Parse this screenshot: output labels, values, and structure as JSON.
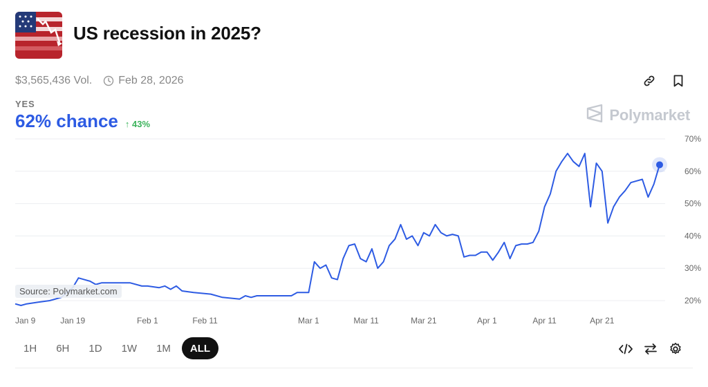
{
  "market": {
    "title": "US recession in 2025?",
    "volume": "$3,565,436 Vol.",
    "end_date": "Feb 28, 2026",
    "outcome_label": "YES",
    "chance": "62% chance",
    "change": "↑ 43%",
    "brand": "Polymarket",
    "source": "Source: Polymarket.com"
  },
  "colors": {
    "line": "#2d5be3",
    "positive": "#3cb35c",
    "brand": "#c5c9d0"
  },
  "icons": {
    "thumbnail": "us-flag-chart-thumbnail",
    "clock": "clock-icon",
    "link": "link-icon",
    "bookmark": "bookmark-icon",
    "brand": "polymarket-logo-icon",
    "embed": "code-icon",
    "swap": "swap-icon",
    "settings": "gear-icon"
  },
  "range_buttons": [
    {
      "label": "1H",
      "active": false
    },
    {
      "label": "6H",
      "active": false
    },
    {
      "label": "1D",
      "active": false
    },
    {
      "label": "1W",
      "active": false
    },
    {
      "label": "1M",
      "active": false
    },
    {
      "label": "ALL",
      "active": true
    }
  ],
  "chart_data": {
    "type": "line",
    "title": "",
    "xlabel": "",
    "ylabel": "",
    "ylim": [
      18,
      72
    ],
    "y_ticks": [
      20,
      30,
      40,
      50,
      60,
      70
    ],
    "y_tick_labels": [
      "20%",
      "30%",
      "40%",
      "50%",
      "60%",
      "70%"
    ],
    "xlim": [
      "2025-01-09",
      "2025-05-01"
    ],
    "x_ticks": [
      "2025-01-09",
      "2025-01-19",
      "2025-02-01",
      "2025-02-11",
      "2025-03-01",
      "2025-03-11",
      "2025-03-21",
      "2025-04-01",
      "2025-04-11",
      "2025-04-21"
    ],
    "x_tick_labels": [
      "Jan 9",
      "Jan 19",
      "Feb 1",
      "Feb 11",
      "Mar 1",
      "Mar 11",
      "Mar 21",
      "Apr 1",
      "Apr 11",
      "Apr 21"
    ],
    "grid": true,
    "legend": "none",
    "series": [
      {
        "values": [
          [
            "2025-01-09",
            19
          ],
          [
            "2025-01-10",
            18.5
          ],
          [
            "2025-01-11",
            19
          ],
          [
            "2025-01-13",
            19.5
          ],
          [
            "2025-01-15",
            20
          ],
          [
            "2025-01-17",
            21
          ],
          [
            "2025-01-19",
            24
          ],
          [
            "2025-01-20",
            27
          ],
          [
            "2025-01-21",
            26.5
          ],
          [
            "2025-01-22",
            26
          ],
          [
            "2025-01-23",
            25
          ],
          [
            "2025-01-24",
            25.5
          ],
          [
            "2025-01-26",
            25.5
          ],
          [
            "2025-01-29",
            25.5
          ],
          [
            "2025-01-31",
            24.5
          ],
          [
            "2025-02-01",
            24.5
          ],
          [
            "2025-02-03",
            24
          ],
          [
            "2025-02-04",
            24.5
          ],
          [
            "2025-02-05",
            23.5
          ],
          [
            "2025-02-06",
            24.5
          ],
          [
            "2025-02-07",
            23
          ],
          [
            "2025-02-09",
            22.5
          ],
          [
            "2025-02-12",
            22
          ],
          [
            "2025-02-14",
            21
          ],
          [
            "2025-02-17",
            20.5
          ],
          [
            "2025-02-18",
            21.5
          ],
          [
            "2025-02-19",
            21
          ],
          [
            "2025-02-20",
            21.5
          ],
          [
            "2025-02-24",
            21.5
          ],
          [
            "2025-02-26",
            21.5
          ],
          [
            "2025-02-27",
            22.5
          ],
          [
            "2025-02-28",
            22.5
          ],
          [
            "2025-03-01",
            22.5
          ],
          [
            "2025-03-02",
            32
          ],
          [
            "2025-03-03",
            30
          ],
          [
            "2025-03-04",
            31
          ],
          [
            "2025-03-05",
            27
          ],
          [
            "2025-03-06",
            26.5
          ],
          [
            "2025-03-07",
            33
          ],
          [
            "2025-03-08",
            37
          ],
          [
            "2025-03-09",
            37.5
          ],
          [
            "2025-03-10",
            33
          ],
          [
            "2025-03-11",
            32
          ],
          [
            "2025-03-12",
            36
          ],
          [
            "2025-03-13",
            30
          ],
          [
            "2025-03-14",
            32
          ],
          [
            "2025-03-15",
            37
          ],
          [
            "2025-03-16",
            39
          ],
          [
            "2025-03-17",
            43.5
          ],
          [
            "2025-03-18",
            39
          ],
          [
            "2025-03-19",
            40
          ],
          [
            "2025-03-20",
            37
          ],
          [
            "2025-03-21",
            41
          ],
          [
            "2025-03-22",
            40
          ],
          [
            "2025-03-23",
            43.5
          ],
          [
            "2025-03-24",
            41
          ],
          [
            "2025-03-25",
            40
          ],
          [
            "2025-03-26",
            40.5
          ],
          [
            "2025-03-27",
            40
          ],
          [
            "2025-03-28",
            33.5
          ],
          [
            "2025-03-29",
            34
          ],
          [
            "2025-03-30",
            34
          ],
          [
            "2025-03-31",
            35
          ],
          [
            "2025-04-01",
            35
          ],
          [
            "2025-04-02",
            32.5
          ],
          [
            "2025-04-03",
            35
          ],
          [
            "2025-04-04",
            38
          ],
          [
            "2025-04-05",
            33
          ],
          [
            "2025-04-06",
            37
          ],
          [
            "2025-04-07",
            37.5
          ],
          [
            "2025-04-08",
            37.5
          ],
          [
            "2025-04-09",
            38
          ],
          [
            "2025-04-10",
            41.5
          ],
          [
            "2025-04-11",
            49
          ],
          [
            "2025-04-12",
            53
          ],
          [
            "2025-04-13",
            60
          ],
          [
            "2025-04-14",
            63
          ],
          [
            "2025-04-15",
            65.5
          ],
          [
            "2025-04-16",
            63
          ],
          [
            "2025-04-17",
            61.5
          ],
          [
            "2025-04-18",
            65.5
          ],
          [
            "2025-04-19",
            49
          ],
          [
            "2025-04-20",
            62.5
          ],
          [
            "2025-04-21",
            60
          ],
          [
            "2025-04-22",
            44
          ],
          [
            "2025-04-23",
            49
          ],
          [
            "2025-04-24",
            52
          ],
          [
            "2025-04-25",
            54
          ],
          [
            "2025-04-26",
            56.5
          ],
          [
            "2025-04-27",
            57
          ],
          [
            "2025-04-28",
            57.5
          ],
          [
            "2025-04-29",
            52
          ],
          [
            "2025-04-30",
            56
          ],
          [
            "2025-05-01",
            62
          ]
        ]
      }
    ]
  }
}
